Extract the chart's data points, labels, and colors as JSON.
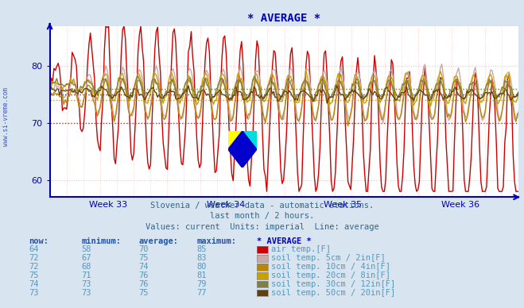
{
  "title": "* AVERAGE *",
  "subtitle1": "Slovenia / weather data - automatic stations.",
  "subtitle2": "last month / 2 hours.",
  "subtitle3": "Values: current  Units: imperial  Line: average",
  "ylabel_text": "www.si-vreme.com",
  "xlabel_weeks": [
    "Week 33",
    "Week 34",
    "Week 35",
    "Week 36"
  ],
  "ylim": [
    57,
    87
  ],
  "yticks": [
    60,
    70,
    80
  ],
  "grid_color": "#ffbbbb",
  "bg_color": "#d8e4f0",
  "plot_bg": "#ffffff",
  "axes_color": "#0000bb",
  "title_color": "#0000bb",
  "legend_colors": [
    "#cc0000",
    "#c8a8a8",
    "#b8860b",
    "#c8a000",
    "#808040",
    "#604010"
  ],
  "avgs": [
    70,
    75,
    74,
    76,
    76,
    75
  ],
  "table_data": [
    [
      64,
      58,
      70,
      85
    ],
    [
      72,
      67,
      75,
      83
    ],
    [
      72,
      68,
      74,
      80
    ],
    [
      75,
      71,
      76,
      81
    ],
    [
      74,
      73,
      76,
      79
    ],
    [
      73,
      73,
      75,
      77
    ]
  ],
  "table_labels": [
    "air temp.[F]",
    "soil temp. 5cm / 2in[F]",
    "soil temp. 10cm / 4in[F]",
    "soil temp. 20cm / 8in[F]",
    "soil temp. 30cm / 12in[F]",
    "soil temp. 50cm / 20in[F]"
  ]
}
